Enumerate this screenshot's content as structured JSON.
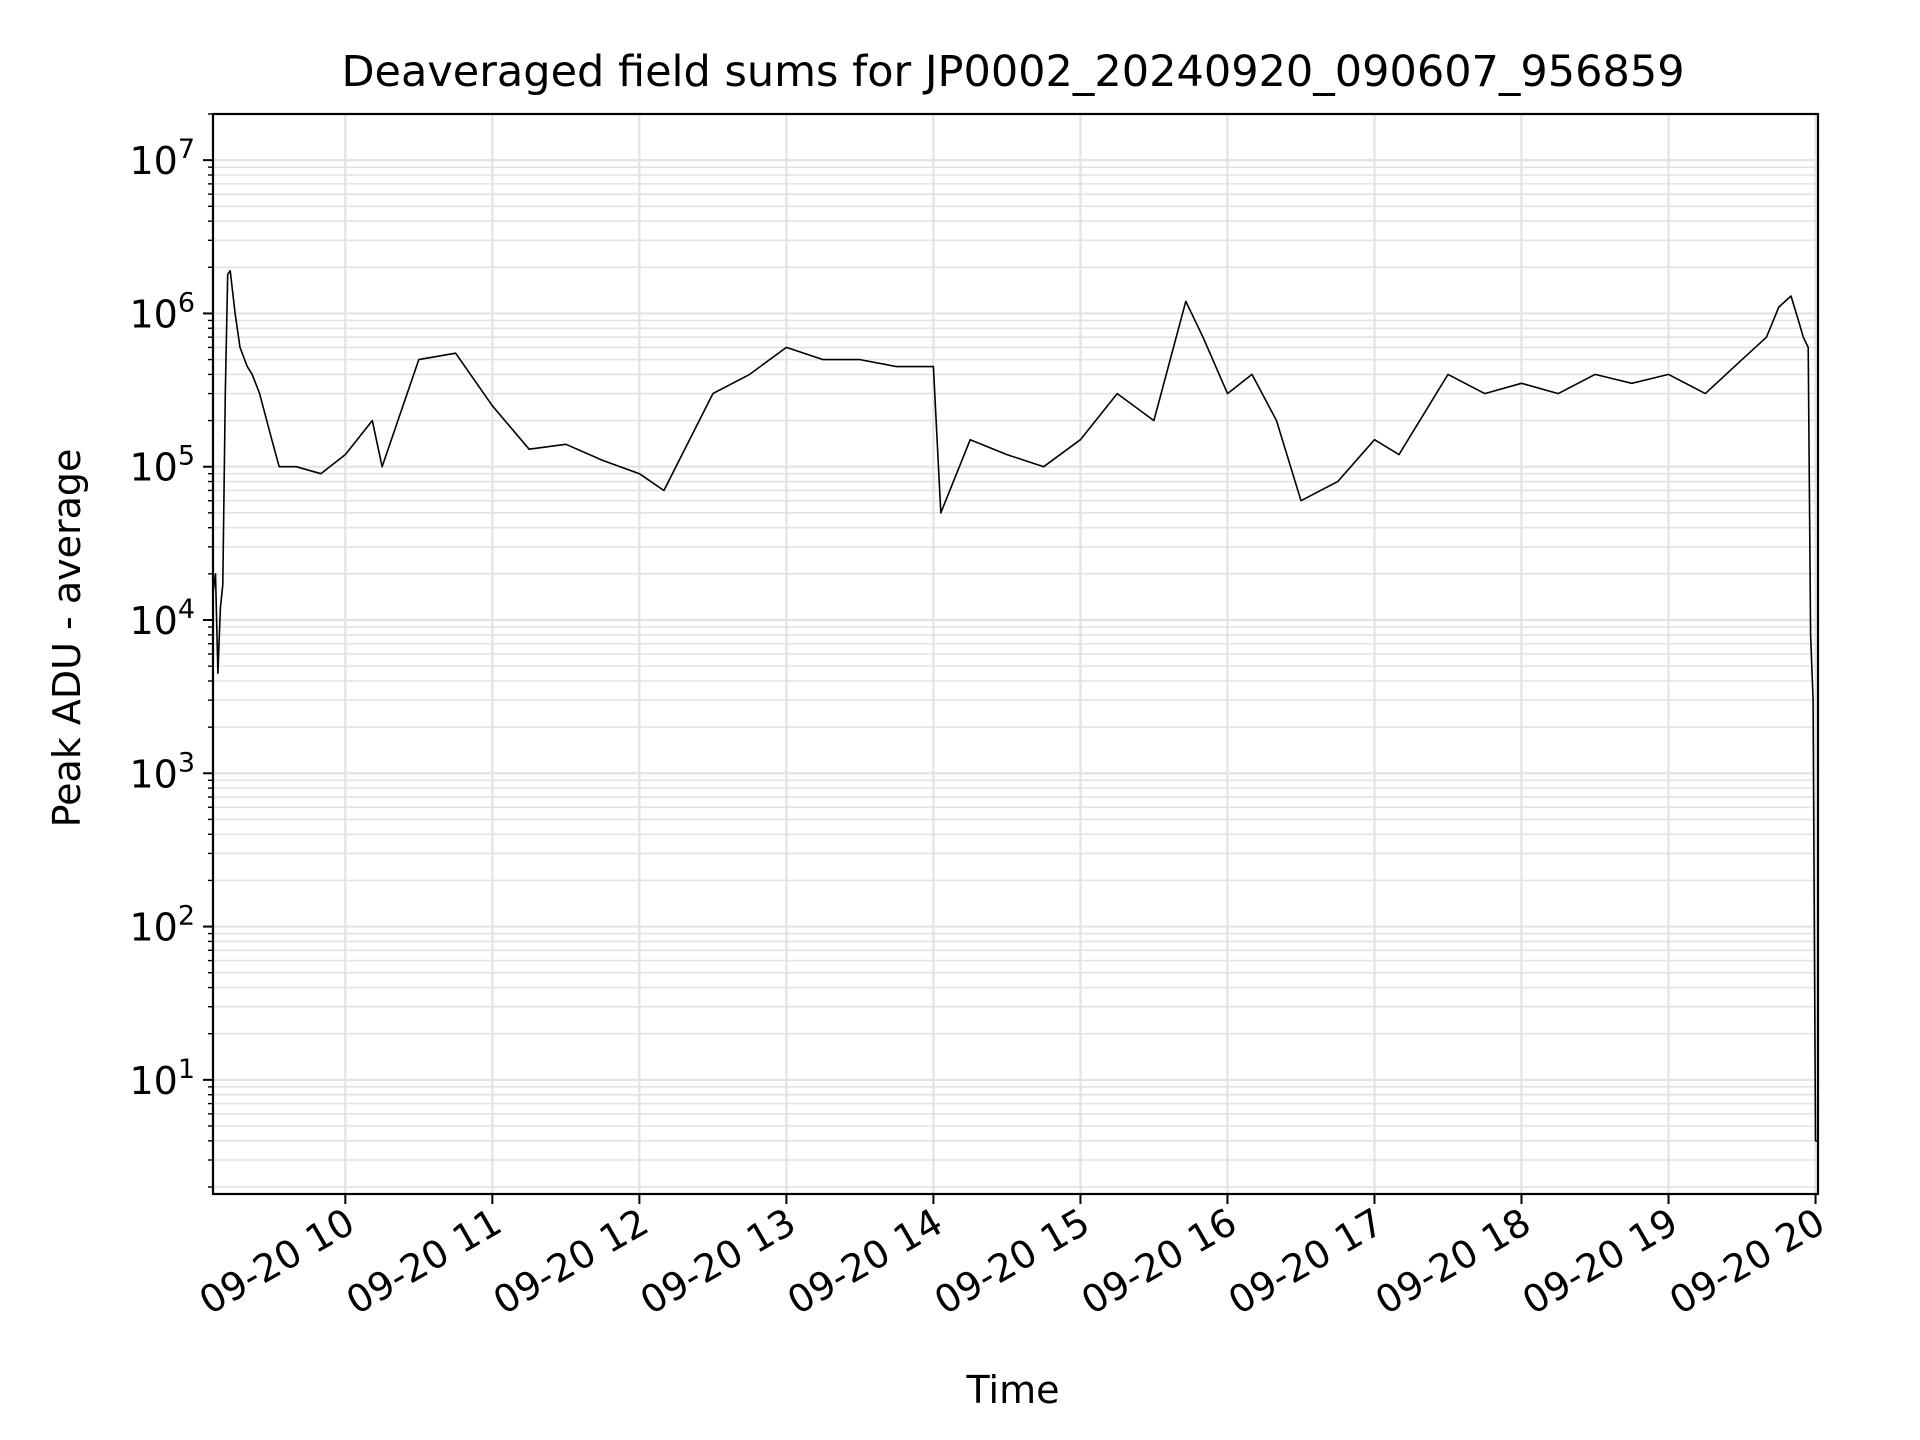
{
  "chart_data": {
    "type": "line",
    "title": "Deaveraged field sums for JP0002_20240920_090607_956859",
    "xlabel": "Time",
    "ylabel": "Peak ADU - average",
    "yscale": "log",
    "ylim": [
      1.8,
      20000000
    ],
    "xlim": [
      "09-20 09:06",
      "09-20 20:01"
    ],
    "grid": true,
    "line_color": "#000000",
    "grid_color": "#e3e3e3",
    "x_ticks": [
      "09-20 10",
      "09-20 11",
      "09-20 12",
      "09-20 13",
      "09-20 14",
      "09-20 15",
      "09-20 16",
      "09-20 17",
      "09-20 18",
      "09-20 19",
      "09-20 20"
    ],
    "y_ticks": [
      {
        "base": "10",
        "exp": "1"
      },
      {
        "base": "10",
        "exp": "2"
      },
      {
        "base": "10",
        "exp": "3"
      },
      {
        "base": "10",
        "exp": "4"
      },
      {
        "base": "10",
        "exp": "5"
      },
      {
        "base": "10",
        "exp": "6"
      },
      {
        "base": "10",
        "exp": "7"
      }
    ],
    "series": [
      {
        "x": [
          "09-20 09:06",
          "09-20 09:07",
          "09-20 09:08",
          "09-20 09:09",
          "09-20 09:10",
          "09-20 09:11",
          "09-20 09:12",
          "09-20 09:13",
          "09-20 09:15",
          "09-20 09:17",
          "09-20 09:20",
          "09-20 09:22",
          "09-20 09:25",
          "09-20 09:30",
          "09-20 09:33",
          "09-20 09:40",
          "09-20 09:50",
          "09-20 10:00",
          "09-20 10:11",
          "09-20 10:15",
          "09-20 10:30",
          "09-20 10:45",
          "09-20 11:00",
          "09-20 11:15",
          "09-20 11:30",
          "09-20 11:45",
          "09-20 12:00",
          "09-20 12:10",
          "09-20 12:30",
          "09-20 12:45",
          "09-20 13:00",
          "09-20 13:15",
          "09-20 13:30",
          "09-20 13:45",
          "09-20 14:00",
          "09-20 14:03",
          "09-20 14:15",
          "09-20 14:30",
          "09-20 14:45",
          "09-20 15:00",
          "09-20 15:15",
          "09-20 15:30",
          "09-20 15:43",
          "09-20 15:50",
          "09-20 16:00",
          "09-20 16:10",
          "09-20 16:20",
          "09-20 16:30",
          "09-20 16:45",
          "09-20 17:00",
          "09-20 17:10",
          "09-20 17:30",
          "09-20 17:45",
          "09-20 18:00",
          "09-20 18:15",
          "09-20 18:30",
          "09-20 18:45",
          "09-20 19:00",
          "09-20 19:15",
          "09-20 19:30",
          "09-20 19:40",
          "09-20 19:45",
          "09-20 19:50",
          "09-20 19:53",
          "09-20 19:55",
          "09-20 19:57",
          "09-20 19:58",
          "09-20 19:59",
          "09-20 20:00",
          "09-20 20:01"
        ],
        "y": [
          15000,
          20000,
          4500,
          12000,
          17000,
          300000,
          1800000,
          1900000,
          1000000,
          600000,
          450000,
          400000,
          300000,
          150000,
          100000,
          100000,
          90000,
          120000,
          200000,
          100000,
          500000,
          550000,
          250000,
          130000,
          140000,
          110000,
          90000,
          70000,
          300000,
          400000,
          600000,
          500000,
          500000,
          450000,
          450000,
          50000,
          150000,
          120000,
          100000,
          150000,
          300000,
          200000,
          1200000,
          700000,
          300000,
          400000,
          200000,
          60000,
          80000,
          150000,
          120000,
          400000,
          300000,
          350000,
          300000,
          400000,
          350000,
          400000,
          300000,
          500000,
          700000,
          1100000,
          1300000,
          900000,
          700000,
          600000,
          8000,
          3000,
          4,
          4
        ]
      }
    ]
  }
}
